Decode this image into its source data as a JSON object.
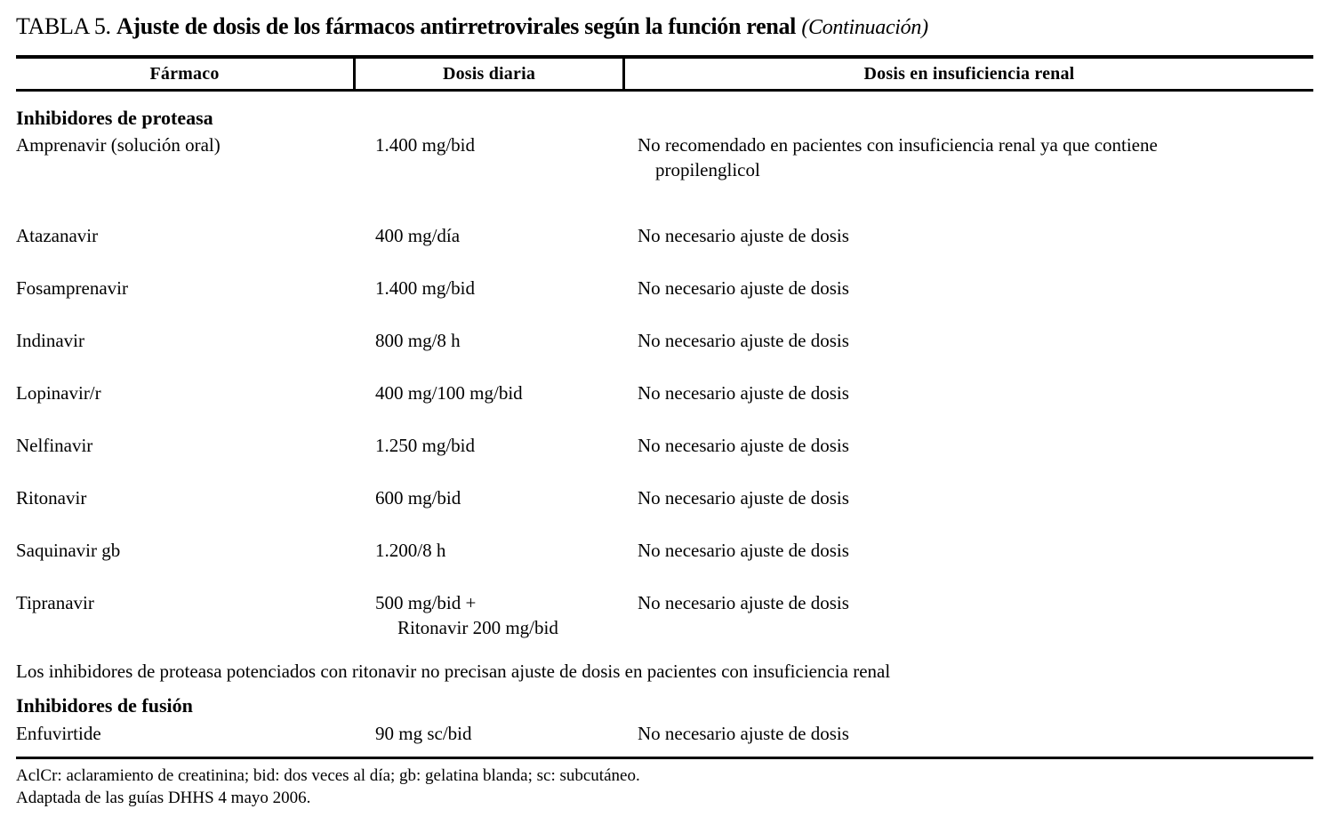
{
  "title": {
    "label": "TABLA 5.",
    "main": "Ajuste de dosis de los fármacos antirretrovirales según la función renal",
    "continuation": "(Continuación)"
  },
  "table": {
    "columns": [
      "Fármaco",
      "Dosis diaria",
      "Dosis en insuficiencia renal"
    ],
    "section_proteasa": {
      "heading": "Inhibidores de proteasa"
    },
    "rows": [
      {
        "farmaco": "Amprenavir (solución oral)",
        "dosis": "1.400 mg/bid",
        "ir": "No recomendado en pacientes con insuficiencia renal ya que contiene",
        "ir2": "propilenglicol"
      },
      {
        "farmaco": "Atazanavir",
        "dosis": "400 mg/día",
        "ir": "No necesario ajuste de dosis"
      },
      {
        "farmaco": "Fosamprenavir",
        "dosis": "1.400 mg/bid",
        "ir": "No necesario ajuste de dosis"
      },
      {
        "farmaco": "Indinavir",
        "dosis": "800 mg/8 h",
        "ir": "No necesario ajuste de dosis"
      },
      {
        "farmaco": "Lopinavir/r",
        "dosis": "400 mg/100 mg/bid",
        "ir": "No necesario ajuste de dosis"
      },
      {
        "farmaco": "Nelfinavir",
        "dosis": "1.250 mg/bid",
        "ir": "No necesario ajuste de dosis"
      },
      {
        "farmaco": "Ritonavir",
        "dosis": "600 mg/bid",
        "ir": "No necesario ajuste de dosis"
      },
      {
        "farmaco": "Saquinavir gb",
        "dosis": "1.200/8 h",
        "ir": "No necesario ajuste de dosis"
      },
      {
        "farmaco": "Tipranavir",
        "dosis": "500 mg/bid +",
        "dosis2": "Ritonavir 200 mg/bid",
        "ir": "No necesario ajuste de dosis"
      }
    ],
    "note": "Los inhibidores de proteasa potenciados con ritonavir no precisan ajuste de dosis en pacientes con insuficiencia renal",
    "section_fusion": {
      "heading": "Inhibidores de fusión"
    },
    "fusion_row": {
      "farmaco": "Enfuvirtide",
      "dosis": "90 mg sc/bid",
      "ir": "No necesario ajuste de dosis"
    }
  },
  "footnotes": [
    "AclCr: aclaramiento de creatinina; bid: dos veces al día; gb: gelatina blanda; sc: subcutáneo.",
    "Adaptada de las guías DHHS 4 mayo 2006."
  ],
  "colors": {
    "text": "#000000",
    "background": "#ffffff",
    "rule": "#000000"
  }
}
